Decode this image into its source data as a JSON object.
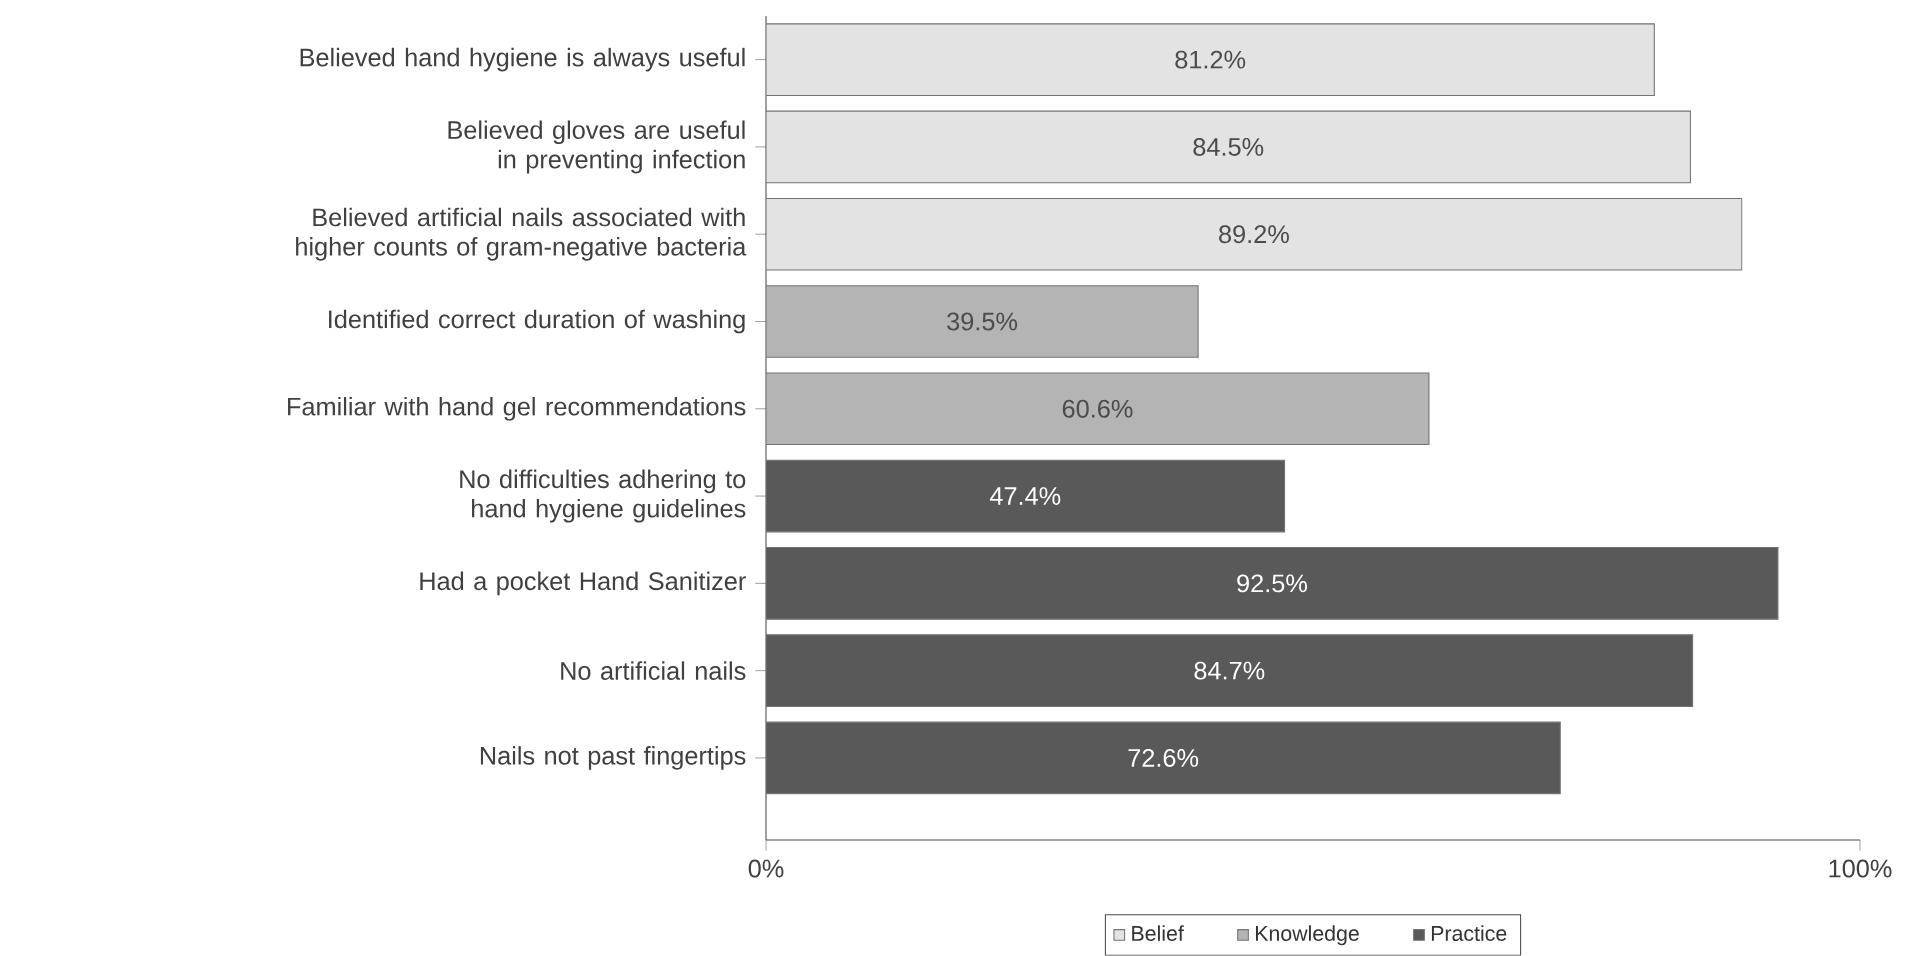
{
  "chart_data": {
    "type": "bar",
    "orientation": "horizontal",
    "categories": [
      "Believed hand hygiene is always useful",
      "Believed gloves are useful in preventing infection",
      "Believed artificial nails associated with higher counts of gram-negative bacteria",
      "Identified correct duration of washing",
      "Familiar with hand gel recommendations",
      "No difficulties adhering to hand hygiene guidelines",
      "Had a pocket Hand Sanitizer",
      "No artificial nails",
      "Nails not past fingertips"
    ],
    "series": [
      {
        "name": "Belief",
        "color": "#e3e3e3",
        "values": [
          81.2,
          84.5,
          89.2,
          null,
          null,
          null,
          null,
          null,
          null
        ],
        "value_labels": [
          "81.2%",
          "84.5%",
          "89.2%",
          null,
          null,
          null,
          null,
          null,
          null
        ]
      },
      {
        "name": "Knowledge",
        "color": "#b4b4b4",
        "values": [
          null,
          null,
          null,
          39.5,
          60.6,
          null,
          null,
          null,
          null
        ],
        "value_labels": [
          null,
          null,
          null,
          "39.5%",
          "60.6%",
          null,
          null,
          null,
          null
        ]
      },
      {
        "name": "Practice",
        "color": "#595959",
        "values": [
          null,
          null,
          null,
          null,
          null,
          47.4,
          92.5,
          84.7,
          72.6
        ],
        "value_labels": [
          null,
          null,
          null,
          null,
          null,
          "47.4%",
          "92.5%",
          "84.7%",
          "72.6%"
        ]
      }
    ],
    "xlim": [
      0,
      100
    ],
    "xticks": [
      {
        "value": 0,
        "label": "0%"
      },
      {
        "value": 100,
        "label": "100%"
      }
    ],
    "grid": false,
    "legend": "bottom"
  }
}
